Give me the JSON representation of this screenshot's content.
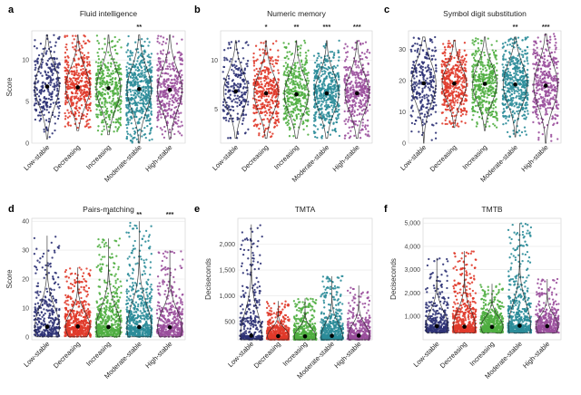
{
  "colors": {
    "Low-stable": "#2e3275",
    "Decreasing": "#e03a2a",
    "Increasing": "#4fae40",
    "Moderate-stable": "#2b8c99",
    "High-stable": "#9a4f9c"
  },
  "chart_data": [
    {
      "letter": "a",
      "type": "violin-scatter",
      "title": "Fluid intelligence",
      "ylabel": "Score",
      "ylim": [
        0,
        13.5
      ],
      "yticks": [
        0,
        5,
        10
      ],
      "ytick_labels": [
        "0",
        "5",
        "10"
      ],
      "categories": [
        "Low-stable",
        "Decreasing",
        "Increasing",
        "Moderate-stable",
        "High-stable"
      ],
      "means": [
        6.8,
        6.7,
        6.6,
        6.5,
        6.4
      ],
      "data_range": [
        [
          0.5,
          13
        ],
        [
          1.5,
          13
        ],
        [
          1,
          13
        ],
        [
          0,
          13
        ],
        [
          0.5,
          13
        ]
      ],
      "density": [
        30,
        45,
        40,
        55,
        40
      ],
      "significance": [
        "",
        "",
        "",
        "**",
        ""
      ]
    },
    {
      "letter": "b",
      "type": "violin-scatter",
      "title": "Numeric memory",
      "ylabel": "",
      "ylim": [
        1.5,
        13
      ],
      "yticks": [
        5,
        10
      ],
      "ytick_labels": [
        "5",
        "10"
      ],
      "categories": [
        "Low-stable",
        "Decreasing",
        "Increasing",
        "Moderate-stable",
        "High-stable"
      ],
      "means": [
        6.8,
        6.6,
        6.5,
        6.6,
        6.6
      ],
      "data_range": [
        [
          2,
          12
        ],
        [
          2,
          12
        ],
        [
          2,
          12
        ],
        [
          2,
          12
        ],
        [
          2,
          12
        ]
      ],
      "density": [
        25,
        40,
        40,
        50,
        40
      ],
      "significance": [
        "",
        "*",
        "**",
        "***",
        "***"
      ]
    },
    {
      "letter": "c",
      "type": "violin-scatter",
      "title": "Symbol digit substitution",
      "ylabel": "",
      "ylim": [
        0,
        36
      ],
      "yticks": [
        0,
        10,
        20,
        30
      ],
      "ytick_labels": [
        "0",
        "10",
        "20",
        "30"
      ],
      "categories": [
        "Low-stable",
        "Decreasing",
        "Increasing",
        "Moderate-stable",
        "High-stable"
      ],
      "means": [
        19.2,
        19.1,
        19.0,
        18.8,
        18.4
      ],
      "data_range": [
        [
          0,
          34
        ],
        [
          5,
          33
        ],
        [
          4,
          34
        ],
        [
          2,
          34
        ],
        [
          0,
          35
        ]
      ],
      "density": [
        30,
        45,
        45,
        50,
        40
      ],
      "significance": [
        "",
        "",
        "",
        "**",
        "***"
      ]
    },
    {
      "letter": "d",
      "type": "violin-scatter",
      "title": "Pairs-matching",
      "ylabel": "Score",
      "ylim": [
        -1,
        41
      ],
      "yticks": [
        0,
        10,
        20,
        30,
        40
      ],
      "ytick_labels": [
        "0",
        "10",
        "20",
        "30",
        "40"
      ],
      "categories": [
        "Low-stable",
        "Decreasing",
        "Increasing",
        "Moderate-stable",
        "High-stable"
      ],
      "means": [
        3.5,
        3.6,
        3.4,
        3.4,
        3.3
      ],
      "data_range": [
        [
          0,
          35
        ],
        [
          0,
          24
        ],
        [
          0,
          34
        ],
        [
          0,
          40
        ],
        [
          0,
          30
        ]
      ],
      "density": [
        35,
        55,
        50,
        60,
        45
      ],
      "significance": [
        "",
        "",
        "*",
        "**",
        "***"
      ]
    },
    {
      "letter": "e",
      "type": "violin-scatter",
      "title": "TMTA",
      "ylabel": "Deciseconds",
      "ylim": [
        150,
        2500
      ],
      "yticks": [
        500,
        1000,
        1500,
        2000
      ],
      "ytick_labels": [
        "500",
        "1,000",
        "1,500",
        "2,000"
      ],
      "categories": [
        "Low-stable",
        "Decreasing",
        "Increasing",
        "Moderate-stable",
        "High-stable"
      ],
      "means": [
        230,
        220,
        215,
        225,
        230
      ],
      "data_range": [
        [
          150,
          2380
        ],
        [
          150,
          900
        ],
        [
          150,
          950
        ],
        [
          150,
          1380
        ],
        [
          150,
          1200
        ]
      ],
      "density": [
        35,
        50,
        50,
        55,
        40
      ],
      "significance": [
        "",
        "",
        "",
        "",
        ""
      ]
    },
    {
      "letter": "f",
      "type": "violin-scatter",
      "title": "TMTB",
      "ylabel": "Deciseconds",
      "ylim": [
        0,
        5200
      ],
      "yticks": [
        1000,
        2000,
        3000,
        4000,
        5000
      ],
      "ytick_labels": [
        "1,000",
        "2,000",
        "3,000",
        "4,000",
        "5,000"
      ],
      "categories": [
        "Low-stable",
        "Decreasing",
        "Increasing",
        "Moderate-stable",
        "High-stable"
      ],
      "means": [
        580,
        560,
        550,
        600,
        580
      ],
      "data_range": [
        [
          300,
          3500
        ],
        [
          300,
          3800
        ],
        [
          300,
          2400
        ],
        [
          300,
          5000
        ],
        [
          300,
          2600
        ]
      ],
      "density": [
        35,
        50,
        50,
        55,
        40
      ],
      "significance": [
        "",
        "",
        "",
        "",
        ""
      ]
    }
  ]
}
